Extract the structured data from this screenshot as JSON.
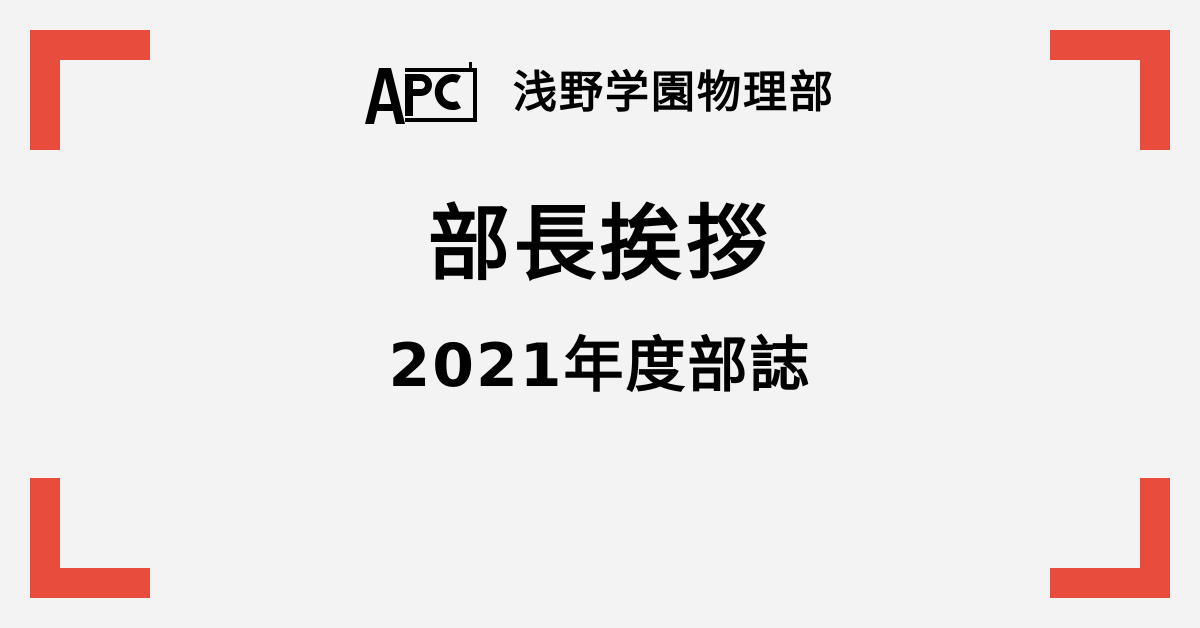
{
  "colors": {
    "background": "#f3f3f3",
    "accent": "#e84c3d",
    "text": "#000000"
  },
  "logo": {
    "text": "APC",
    "icon": "apc-logo-icon"
  },
  "header": {
    "org_name": "浅野学園物理部"
  },
  "main": {
    "title": "部長挨拶",
    "subtitle": "2021年度部誌"
  }
}
